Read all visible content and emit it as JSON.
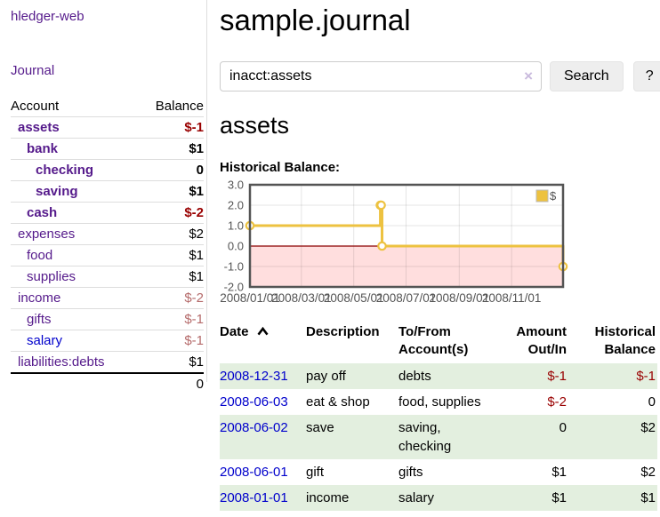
{
  "app": {
    "title": "hledger-web"
  },
  "colors": {
    "link_purple": "#551a8b",
    "link_blue": "#0000cc",
    "negative_strong": "#990000",
    "negative_faded": "#b56b6b",
    "row_stripe_green": "#e3efdf",
    "chart_line": "#edc240",
    "chart_negative_fill": "#ffdede",
    "chart_zero_line": "#8b0000",
    "chart_border": "#545454"
  },
  "sidebar": {
    "journal_link": "Journal",
    "accounts_header": {
      "account": "Account",
      "balance": "Balance"
    },
    "accounts": [
      {
        "name": "assets",
        "balance": "$-1",
        "indent": 0,
        "bold": true,
        "blue": false
      },
      {
        "name": "bank",
        "balance": "$1",
        "indent": 1,
        "bold": true,
        "blue": false
      },
      {
        "name": "checking",
        "balance": "0",
        "indent": 2,
        "bold": true,
        "blue": false
      },
      {
        "name": "saving",
        "balance": "$1",
        "indent": 2,
        "bold": true,
        "blue": false
      },
      {
        "name": "cash",
        "balance": "$-2",
        "indent": 1,
        "bold": true,
        "blue": false
      },
      {
        "name": "expenses",
        "balance": "$2",
        "indent": 0,
        "bold": false,
        "blue": false
      },
      {
        "name": "food",
        "balance": "$1",
        "indent": 1,
        "bold": false,
        "blue": false
      },
      {
        "name": "supplies",
        "balance": "$1",
        "indent": 1,
        "bold": false,
        "blue": false
      },
      {
        "name": "income",
        "balance": "$-2",
        "indent": 0,
        "bold": false,
        "blue": false
      },
      {
        "name": "gifts",
        "balance": "$-1",
        "indent": 1,
        "bold": false,
        "blue": false
      },
      {
        "name": "salary",
        "balance": "$-1",
        "indent": 1,
        "bold": false,
        "blue": true
      },
      {
        "name": "liabilities:debts",
        "balance": "$1",
        "indent": 0,
        "bold": false,
        "blue": false
      }
    ],
    "total": "0"
  },
  "header": {
    "title": "sample.journal"
  },
  "search": {
    "value": "inacct:assets",
    "clear_icon": "×",
    "button": "Search",
    "help_button": "?"
  },
  "main": {
    "account_title": "assets",
    "chart_label": "Historical Balance:"
  },
  "chart_data": {
    "type": "line",
    "step": true,
    "title": "Historical Balance:",
    "legend": {
      "entries": [
        "$"
      ],
      "position": "top-right"
    },
    "x_range": [
      "2008-01-01",
      "2008-12-31"
    ],
    "ylim": [
      -2,
      3
    ],
    "y_ticks": [
      3.0,
      2.0,
      1.0,
      0.0,
      -1.0,
      -2.0
    ],
    "x_ticks": [
      "2008/01/01",
      "2008/03/01",
      "2008/05/01",
      "2008/07/01",
      "2008/09/01",
      "2008/11/01"
    ],
    "series": [
      {
        "name": "$",
        "points": [
          [
            "2008-01-01",
            1
          ],
          [
            "2008-06-01",
            2
          ],
          [
            "2008-06-02",
            2
          ],
          [
            "2008-06-03",
            0
          ],
          [
            "2008-12-31",
            -1
          ]
        ]
      }
    ],
    "grid": true
  },
  "register": {
    "headers": [
      "Date",
      "Description",
      "To/From Account(s)",
      "Amount Out/In",
      "Historical Balance"
    ],
    "rows": [
      {
        "date": "2008-12-31",
        "description": "pay off",
        "accounts": "debts",
        "amount": "$-1",
        "balance": "$-1"
      },
      {
        "date": "2008-06-03",
        "description": "eat & shop",
        "accounts": "food, supplies",
        "amount": "$-2",
        "balance": "0"
      },
      {
        "date": "2008-06-02",
        "description": "save",
        "accounts": "saving, checking",
        "amount": "0",
        "balance": "$2"
      },
      {
        "date": "2008-06-01",
        "description": "gift",
        "accounts": "gifts",
        "amount": "$1",
        "balance": "$2"
      },
      {
        "date": "2008-01-01",
        "description": "income",
        "accounts": "salary",
        "amount": "$1",
        "balance": "$1"
      }
    ]
  }
}
